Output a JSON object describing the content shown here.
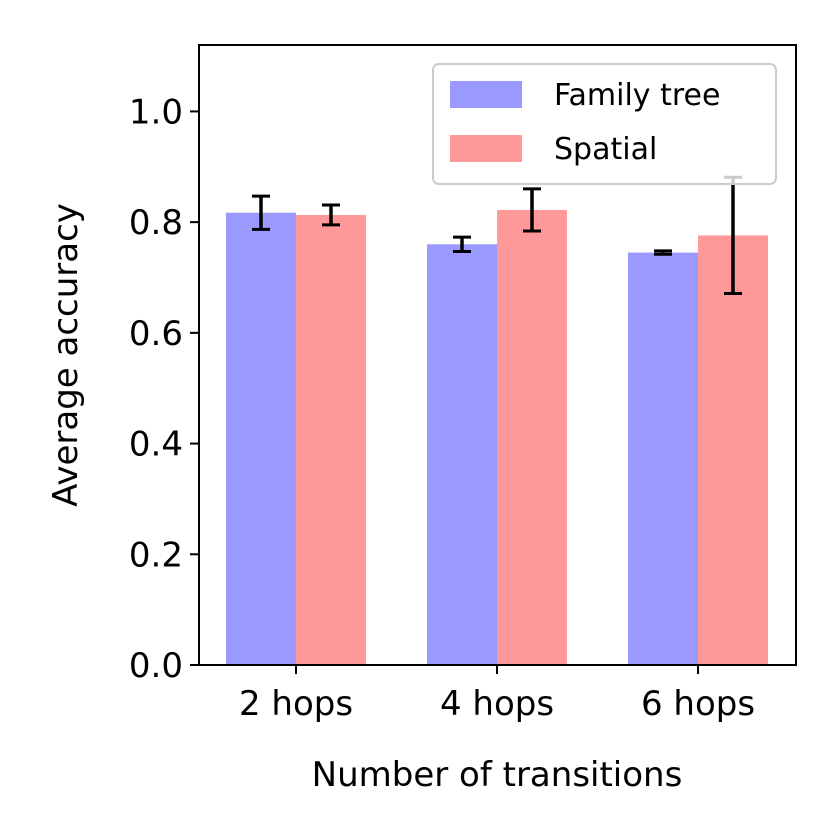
{
  "chart_data": {
    "type": "bar",
    "categories": [
      "2 hops",
      "4 hops",
      "6 hops"
    ],
    "series": [
      {
        "name": "Family tree",
        "color": "#9999ff",
        "values": [
          0.817,
          0.76,
          0.745
        ],
        "errors": [
          0.03,
          0.013,
          0.003
        ]
      },
      {
        "name": "Spatial",
        "color": "#ff9999",
        "values": [
          0.813,
          0.822,
          0.776
        ],
        "errors": [
          0.018,
          0.038,
          0.105
        ]
      }
    ],
    "title": "",
    "xlabel": "Number of transitions",
    "ylabel": "Average accuracy",
    "ylim": [
      0,
      1.12
    ],
    "yticks": [
      0.0,
      0.2,
      0.4,
      0.6,
      0.8,
      1.0
    ],
    "ytick_labels": [
      "0.0",
      "0.2",
      "0.4",
      "0.6",
      "0.8",
      "1.0"
    ],
    "legend_position": "top-right",
    "grid": false
  }
}
